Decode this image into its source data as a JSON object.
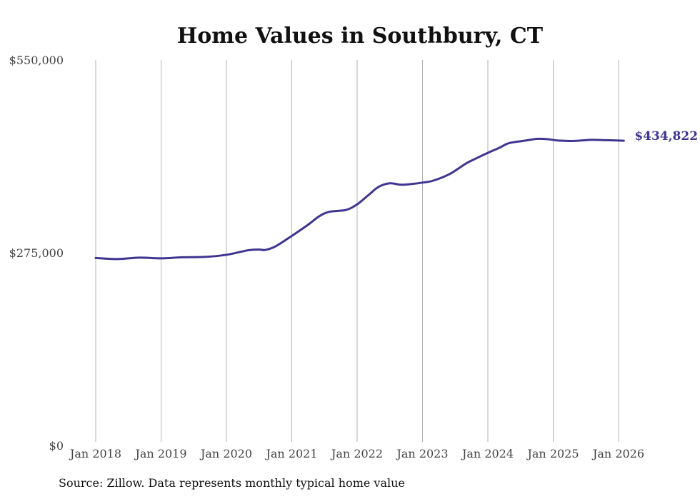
{
  "chart_data": {
    "type": "line",
    "title": "Home Values in Southbury, CT",
    "xlabel": "",
    "ylabel": "",
    "ylim": [
      0,
      550000
    ],
    "yticks": [
      {
        "value": 0,
        "label": "$0"
      },
      {
        "value": 275000,
        "label": "$275,000"
      },
      {
        "value": 550000,
        "label": "$550,000"
      }
    ],
    "xticks": [
      {
        "t": 0,
        "label": "Jan 2018"
      },
      {
        "t": 1,
        "label": "Jan 2019"
      },
      {
        "t": 2,
        "label": "Jan 2020"
      },
      {
        "t": 3,
        "label": "Jan 2021"
      },
      {
        "t": 4,
        "label": "Jan 2022"
      },
      {
        "t": 5,
        "label": "Jan 2023"
      },
      {
        "t": 6,
        "label": "Jan 2024"
      },
      {
        "t": 7,
        "label": "Jan 2025"
      },
      {
        "t": 8,
        "label": "Jan 2026"
      }
    ],
    "xlim": [
      0,
      8
    ],
    "grid": "vertical",
    "series": [
      {
        "name": "Southbury, CT",
        "color": "#3f3590",
        "end_label": "$434,822",
        "points": [
          {
            "t": 0.0,
            "v": 267500
          },
          {
            "t": 0.33,
            "v": 266000
          },
          {
            "t": 0.67,
            "v": 268000
          },
          {
            "t": 1.0,
            "v": 267000
          },
          {
            "t": 1.33,
            "v": 268500
          },
          {
            "t": 1.67,
            "v": 269000
          },
          {
            "t": 2.0,
            "v": 272000
          },
          {
            "t": 2.33,
            "v": 278500
          },
          {
            "t": 2.5,
            "v": 279500
          },
          {
            "t": 2.6,
            "v": 279000
          },
          {
            "t": 2.75,
            "v": 284000
          },
          {
            "t": 3.0,
            "v": 299000
          },
          {
            "t": 3.25,
            "v": 315000
          },
          {
            "t": 3.42,
            "v": 327000
          },
          {
            "t": 3.58,
            "v": 333500
          },
          {
            "t": 3.83,
            "v": 336000
          },
          {
            "t": 4.0,
            "v": 344000
          },
          {
            "t": 4.17,
            "v": 357000
          },
          {
            "t": 4.33,
            "v": 369000
          },
          {
            "t": 4.5,
            "v": 374000
          },
          {
            "t": 4.67,
            "v": 372000
          },
          {
            "t": 4.83,
            "v": 373000
          },
          {
            "t": 5.0,
            "v": 375000
          },
          {
            "t": 5.17,
            "v": 378000
          },
          {
            "t": 5.42,
            "v": 387500
          },
          {
            "t": 5.67,
            "v": 402500
          },
          {
            "t": 5.83,
            "v": 410000
          },
          {
            "t": 6.0,
            "v": 417500
          },
          {
            "t": 6.17,
            "v": 424500
          },
          {
            "t": 6.33,
            "v": 431500
          },
          {
            "t": 6.58,
            "v": 435000
          },
          {
            "t": 6.75,
            "v": 437500
          },
          {
            "t": 6.92,
            "v": 437000
          },
          {
            "t": 7.08,
            "v": 435000
          },
          {
            "t": 7.33,
            "v": 434500
          },
          {
            "t": 7.58,
            "v": 436000
          },
          {
            "t": 7.83,
            "v": 435500
          },
          {
            "t": 8.08,
            "v": 434822
          }
        ]
      }
    ],
    "source": "Source: Zillow. Data represents monthly typical home value"
  }
}
